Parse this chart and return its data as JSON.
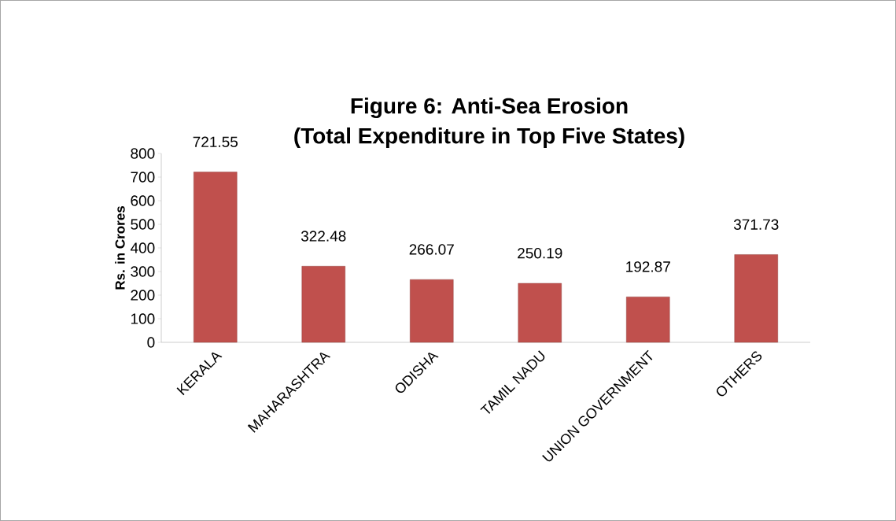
{
  "chart_data": {
    "type": "bar",
    "title": "Figure 6: Anti-Sea Erosion",
    "subtitle": "(Total Expenditure in Top Five States)",
    "ylabel": "Rs. in Crores",
    "categories": [
      "KERALA",
      "MAHARASHTRA",
      "ODISHA",
      "TAMIL NADU",
      "UNION GOVERNMENT",
      "OTHERS"
    ],
    "values": [
      721.55,
      322.48,
      266.07,
      250.19,
      192.87,
      371.73
    ],
    "color": "#c0504d",
    "ylim": [
      0,
      800
    ],
    "yticks": [
      0,
      100,
      200,
      300,
      400,
      500,
      600,
      700,
      800
    ],
    "data_labels": true
  }
}
